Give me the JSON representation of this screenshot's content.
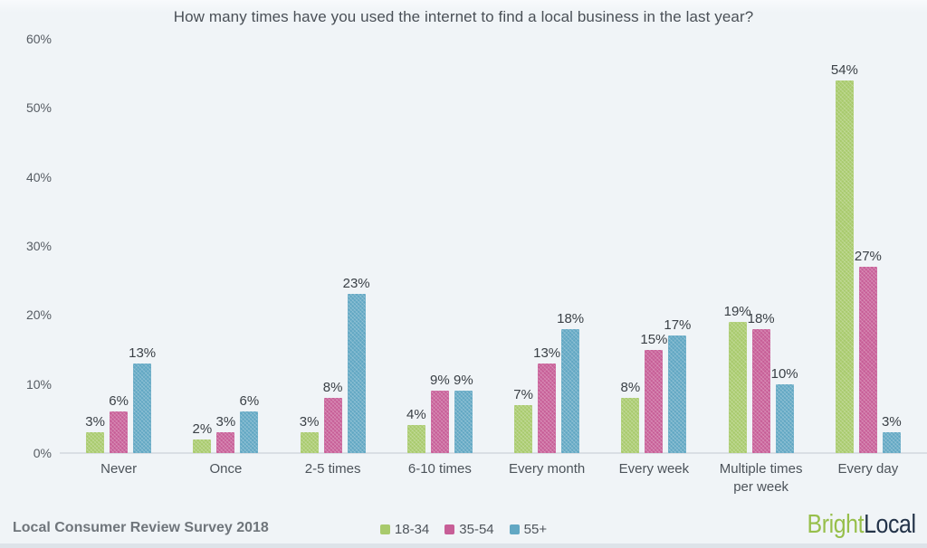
{
  "title": "How many times have you used the internet to find a local business in the last year?",
  "footer": {
    "source": "Local Consumer Review Survey 2018",
    "brand_part1": "Bright",
    "brand_part2": "Local"
  },
  "colors": {
    "background": "#f0f4f7",
    "green": "#a8ca6c",
    "pink": "#c75e97",
    "blue": "#61a7c3",
    "axis_line": "#d9dee4",
    "brand_green": "#97bf4b",
    "brand_navy": "#233349"
  },
  "chart_data": {
    "type": "bar",
    "title": "How many times have you used the internet to find a local business in the last year?",
    "categories": [
      "Never",
      "Once",
      "2-5 times",
      "6-10 times",
      "Every month",
      "Every week",
      "Multiple times per week",
      "Every day"
    ],
    "series": [
      {
        "name": "18-34",
        "color": "#a8ca6c",
        "values": [
          3,
          2,
          3,
          4,
          7,
          8,
          19,
          54
        ]
      },
      {
        "name": "35-54",
        "color": "#c75e97",
        "values": [
          6,
          3,
          8,
          9,
          13,
          15,
          18,
          27
        ]
      },
      {
        "name": "55+",
        "color": "#61a7c3",
        "values": [
          13,
          6,
          23,
          9,
          18,
          17,
          10,
          3
        ]
      }
    ],
    "value_suffix": "%",
    "xlabel": "",
    "ylabel": "",
    "ylim": [
      0,
      60
    ],
    "y_ticks": [
      "0%",
      "10%",
      "20%",
      "30%",
      "40%",
      "50%",
      "60%"
    ],
    "grid": false,
    "data_labels": true,
    "legend_position": "bottom-center"
  }
}
